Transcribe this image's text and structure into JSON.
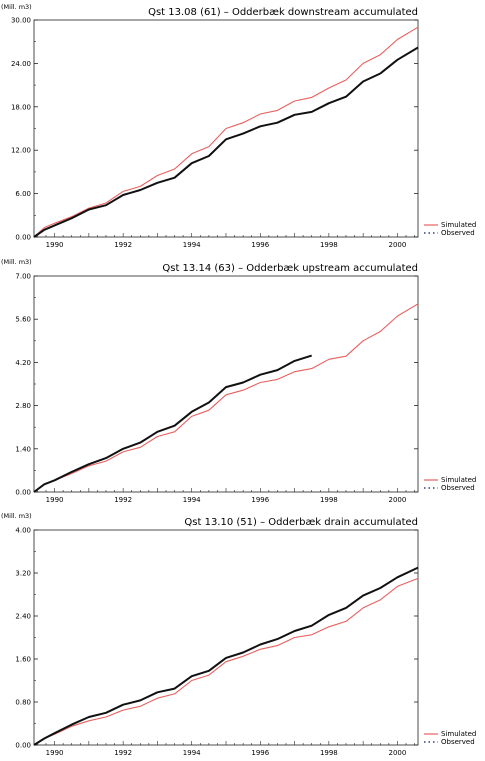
{
  "colors": {
    "simulated": "#e8605f",
    "observed": "#111111",
    "frame": "#222222"
  },
  "chart_data": [
    {
      "type": "line",
      "title": "Qst 13.08 (61) – Odderbæk downstream accumulated",
      "ylabel": "(Mill. m3)",
      "xlim": [
        1989.4,
        2000.6
      ],
      "ylim": [
        0,
        30
      ],
      "x_ticks": [
        1990,
        1992,
        1994,
        1996,
        1998,
        2000
      ],
      "x_tick_labels": [
        "1990",
        "1992",
        "1994",
        "1996",
        "1998",
        "2000"
      ],
      "y_ticks": [
        0,
        6,
        12,
        18,
        24,
        30
      ],
      "y_tick_labels": [
        "0.00",
        "6.00",
        "12.00",
        "18.00",
        "24.00",
        "30.00"
      ],
      "legend_position": "bottom-right",
      "series": [
        {
          "name": "Simulated",
          "style": "solid",
          "x": [
            1989.4,
            1989.7,
            1990.0,
            1990.5,
            1991.0,
            1991.5,
            1992.0,
            1992.5,
            1993.0,
            1993.5,
            1994.0,
            1994.5,
            1995.0,
            1995.5,
            1996.0,
            1996.5,
            1997.0,
            1997.5,
            1998.0,
            1998.5,
            1999.0,
            1999.5,
            2000.0,
            2000.6
          ],
          "y": [
            0,
            1.3,
            1.9,
            2.8,
            4.0,
            4.7,
            6.3,
            7.0,
            8.5,
            9.4,
            11.5,
            12.5,
            15.0,
            15.8,
            17.0,
            17.5,
            18.8,
            19.3,
            20.6,
            21.7,
            24.0,
            25.2,
            27.3,
            29.0
          ]
        },
        {
          "name": "Observed",
          "style": "solid",
          "x": [
            1989.4,
            1989.7,
            1990.0,
            1990.5,
            1991.0,
            1991.5,
            1992.0,
            1992.5,
            1993.0,
            1993.5,
            1994.0,
            1994.5,
            1995.0,
            1995.5,
            1996.0,
            1996.5,
            1997.0,
            1997.5,
            1998.0,
            1998.5,
            1999.0,
            1999.5,
            2000.0,
            2000.6
          ],
          "y": [
            0,
            1.0,
            1.6,
            2.6,
            3.8,
            4.4,
            5.8,
            6.5,
            7.5,
            8.2,
            10.2,
            11.2,
            13.5,
            14.3,
            15.3,
            15.8,
            16.9,
            17.3,
            18.5,
            19.4,
            21.5,
            22.6,
            24.5,
            26.2
          ]
        }
      ]
    },
    {
      "type": "line",
      "title": "Qst 13.14 (63) – Odderbæk upstream accumulated",
      "ylabel": "(Mill. m3)",
      "xlim": [
        1989.4,
        2000.6
      ],
      "ylim": [
        0,
        7
      ],
      "x_ticks": [
        1990,
        1992,
        1994,
        1996,
        1998,
        2000
      ],
      "x_tick_labels": [
        "1990",
        "1992",
        "1994",
        "1996",
        "1998",
        "2000"
      ],
      "y_ticks": [
        0,
        1.4,
        2.8,
        4.2,
        5.6,
        7.0
      ],
      "y_tick_labels": [
        "0.00",
        "1.40",
        "2.80",
        "4.20",
        "5.60",
        "7.00"
      ],
      "legend_position": "bottom-right",
      "series": [
        {
          "name": "Simulated",
          "style": "solid",
          "x": [
            1989.4,
            1989.7,
            1990.0,
            1990.5,
            1991.0,
            1991.5,
            1992.0,
            1992.5,
            1993.0,
            1993.5,
            1994.0,
            1994.5,
            1995.0,
            1995.5,
            1996.0,
            1996.5,
            1997.0,
            1997.5,
            1998.0,
            1998.5,
            1999.0,
            1999.5,
            2000.0,
            2000.6
          ],
          "y": [
            0,
            0.25,
            0.38,
            0.6,
            0.85,
            1.0,
            1.3,
            1.45,
            1.8,
            1.95,
            2.45,
            2.65,
            3.15,
            3.3,
            3.55,
            3.65,
            3.9,
            4.0,
            4.3,
            4.4,
            4.9,
            5.2,
            5.7,
            6.1
          ]
        },
        {
          "name": "Observed",
          "style": "solid",
          "x": [
            1989.4,
            1989.7,
            1990.0,
            1990.5,
            1991.0,
            1991.5,
            1992.0,
            1992.5,
            1993.0,
            1993.5,
            1994.0,
            1994.5,
            1995.0,
            1995.5,
            1996.0,
            1996.5,
            1997.0,
            1997.5
          ],
          "y": [
            0,
            0.25,
            0.38,
            0.65,
            0.9,
            1.1,
            1.4,
            1.6,
            1.95,
            2.15,
            2.6,
            2.9,
            3.4,
            3.55,
            3.8,
            3.95,
            4.25,
            4.42
          ]
        }
      ]
    },
    {
      "type": "line",
      "title": "Qst 13.10 (51) – Odderbæk drain accumulated",
      "ylabel": "(Mill. m3)",
      "xlim": [
        1989.4,
        2000.6
      ],
      "ylim": [
        0,
        4
      ],
      "x_ticks": [
        1990,
        1992,
        1994,
        1996,
        1998,
        2000
      ],
      "x_tick_labels": [
        "1990",
        "1992",
        "1994",
        "1996",
        "1998",
        "2000"
      ],
      "y_ticks": [
        0,
        0.8,
        1.6,
        2.4,
        3.2,
        4.0
      ],
      "y_tick_labels": [
        "0.00",
        "0.80",
        "1.60",
        "2.40",
        "3.20",
        "4.00"
      ],
      "legend_position": "bottom-right",
      "series": [
        {
          "name": "Simulated",
          "style": "solid",
          "x": [
            1989.4,
            1989.7,
            1990.0,
            1990.5,
            1991.0,
            1991.5,
            1992.0,
            1992.5,
            1993.0,
            1993.5,
            1994.0,
            1994.5,
            1995.0,
            1995.5,
            1996.0,
            1996.5,
            1997.0,
            1997.5,
            1998.0,
            1998.5,
            1999.0,
            1999.5,
            2000.0,
            2000.6
          ],
          "y": [
            0,
            0.12,
            0.2,
            0.35,
            0.45,
            0.52,
            0.65,
            0.72,
            0.87,
            0.95,
            1.2,
            1.3,
            1.55,
            1.65,
            1.78,
            1.85,
            2.0,
            2.05,
            2.2,
            2.3,
            2.55,
            2.7,
            2.95,
            3.1
          ]
        },
        {
          "name": "Observed",
          "style": "solid",
          "x": [
            1989.4,
            1989.7,
            1990.0,
            1990.5,
            1991.0,
            1991.5,
            1992.0,
            1992.5,
            1993.0,
            1993.5,
            1994.0,
            1994.5,
            1995.0,
            1995.5,
            1996.0,
            1996.5,
            1997.0,
            1997.5,
            1998.0,
            1998.5,
            1999.0,
            1999.5,
            2000.0,
            2000.6
          ],
          "y": [
            0,
            0.12,
            0.22,
            0.38,
            0.52,
            0.6,
            0.75,
            0.83,
            0.98,
            1.05,
            1.28,
            1.38,
            1.62,
            1.72,
            1.87,
            1.97,
            2.12,
            2.22,
            2.42,
            2.55,
            2.78,
            2.92,
            3.12,
            3.3
          ]
        }
      ]
    }
  ]
}
